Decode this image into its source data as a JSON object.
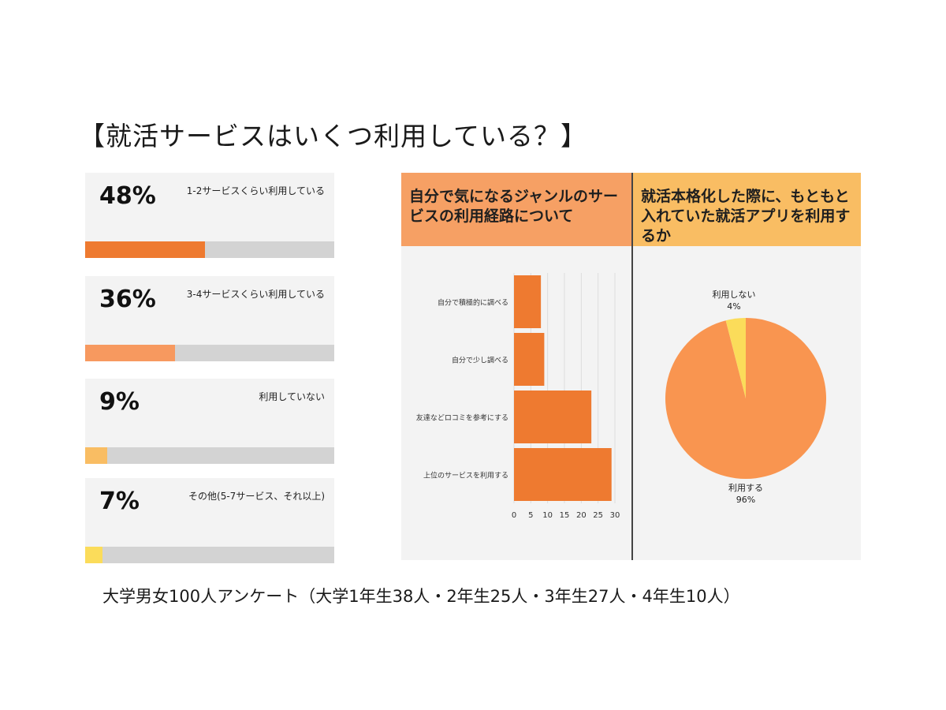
{
  "title": "【就活サービスはいくつ利用している？】",
  "stats": [
    {
      "percent_text": "48%",
      "value": 48,
      "label": "1-2サービスくらい利用している",
      "color": "#ee7a30"
    },
    {
      "percent_text": "36%",
      "value": 36,
      "label": "3-4サービスくらい利用している",
      "color": "#f7995f"
    },
    {
      "percent_text": "9%",
      "value": 9,
      "label": "利用していない",
      "color": "#f9bd63"
    },
    {
      "percent_text": "7%",
      "value": 7,
      "label": "その他(5-7サービス、それ以上)",
      "color": "#fbdc5a"
    }
  ],
  "colors": {
    "bar": "#ee7a30",
    "panel_left_head": "#f6a064",
    "panel_right_head": "#f9bd63",
    "pie_main": "#f99550",
    "pie_minor": "#fbdc5a"
  },
  "chart_data": [
    {
      "type": "bar",
      "orientation": "horizontal",
      "title": "自分で気になるジャンルのサービスの利用経路について",
      "categories": [
        "自分で積極的に調べる",
        "自分で少し調べる",
        "友達などロコミを参考にする",
        "上位のサービスを利用する"
      ],
      "values": [
        8,
        9,
        23,
        29
      ],
      "x_ticks": [
        "0",
        "5",
        "10",
        "15",
        "20",
        "25",
        "30"
      ],
      "xlim": [
        0,
        30
      ],
      "grid": "vertical"
    },
    {
      "type": "pie",
      "title": "就活本格化した際に、もともと入れていた就活アプリを利用するか",
      "slices": [
        {
          "label": "利用する",
          "percent_text": "96%",
          "value": 96
        },
        {
          "label": "利用しない",
          "percent_text": "4%",
          "value": 4
        }
      ]
    }
  ],
  "footnote": "大学男女100人アンケート（大学1年生38人・2年生25人・3年生27人・4年生10人）"
}
